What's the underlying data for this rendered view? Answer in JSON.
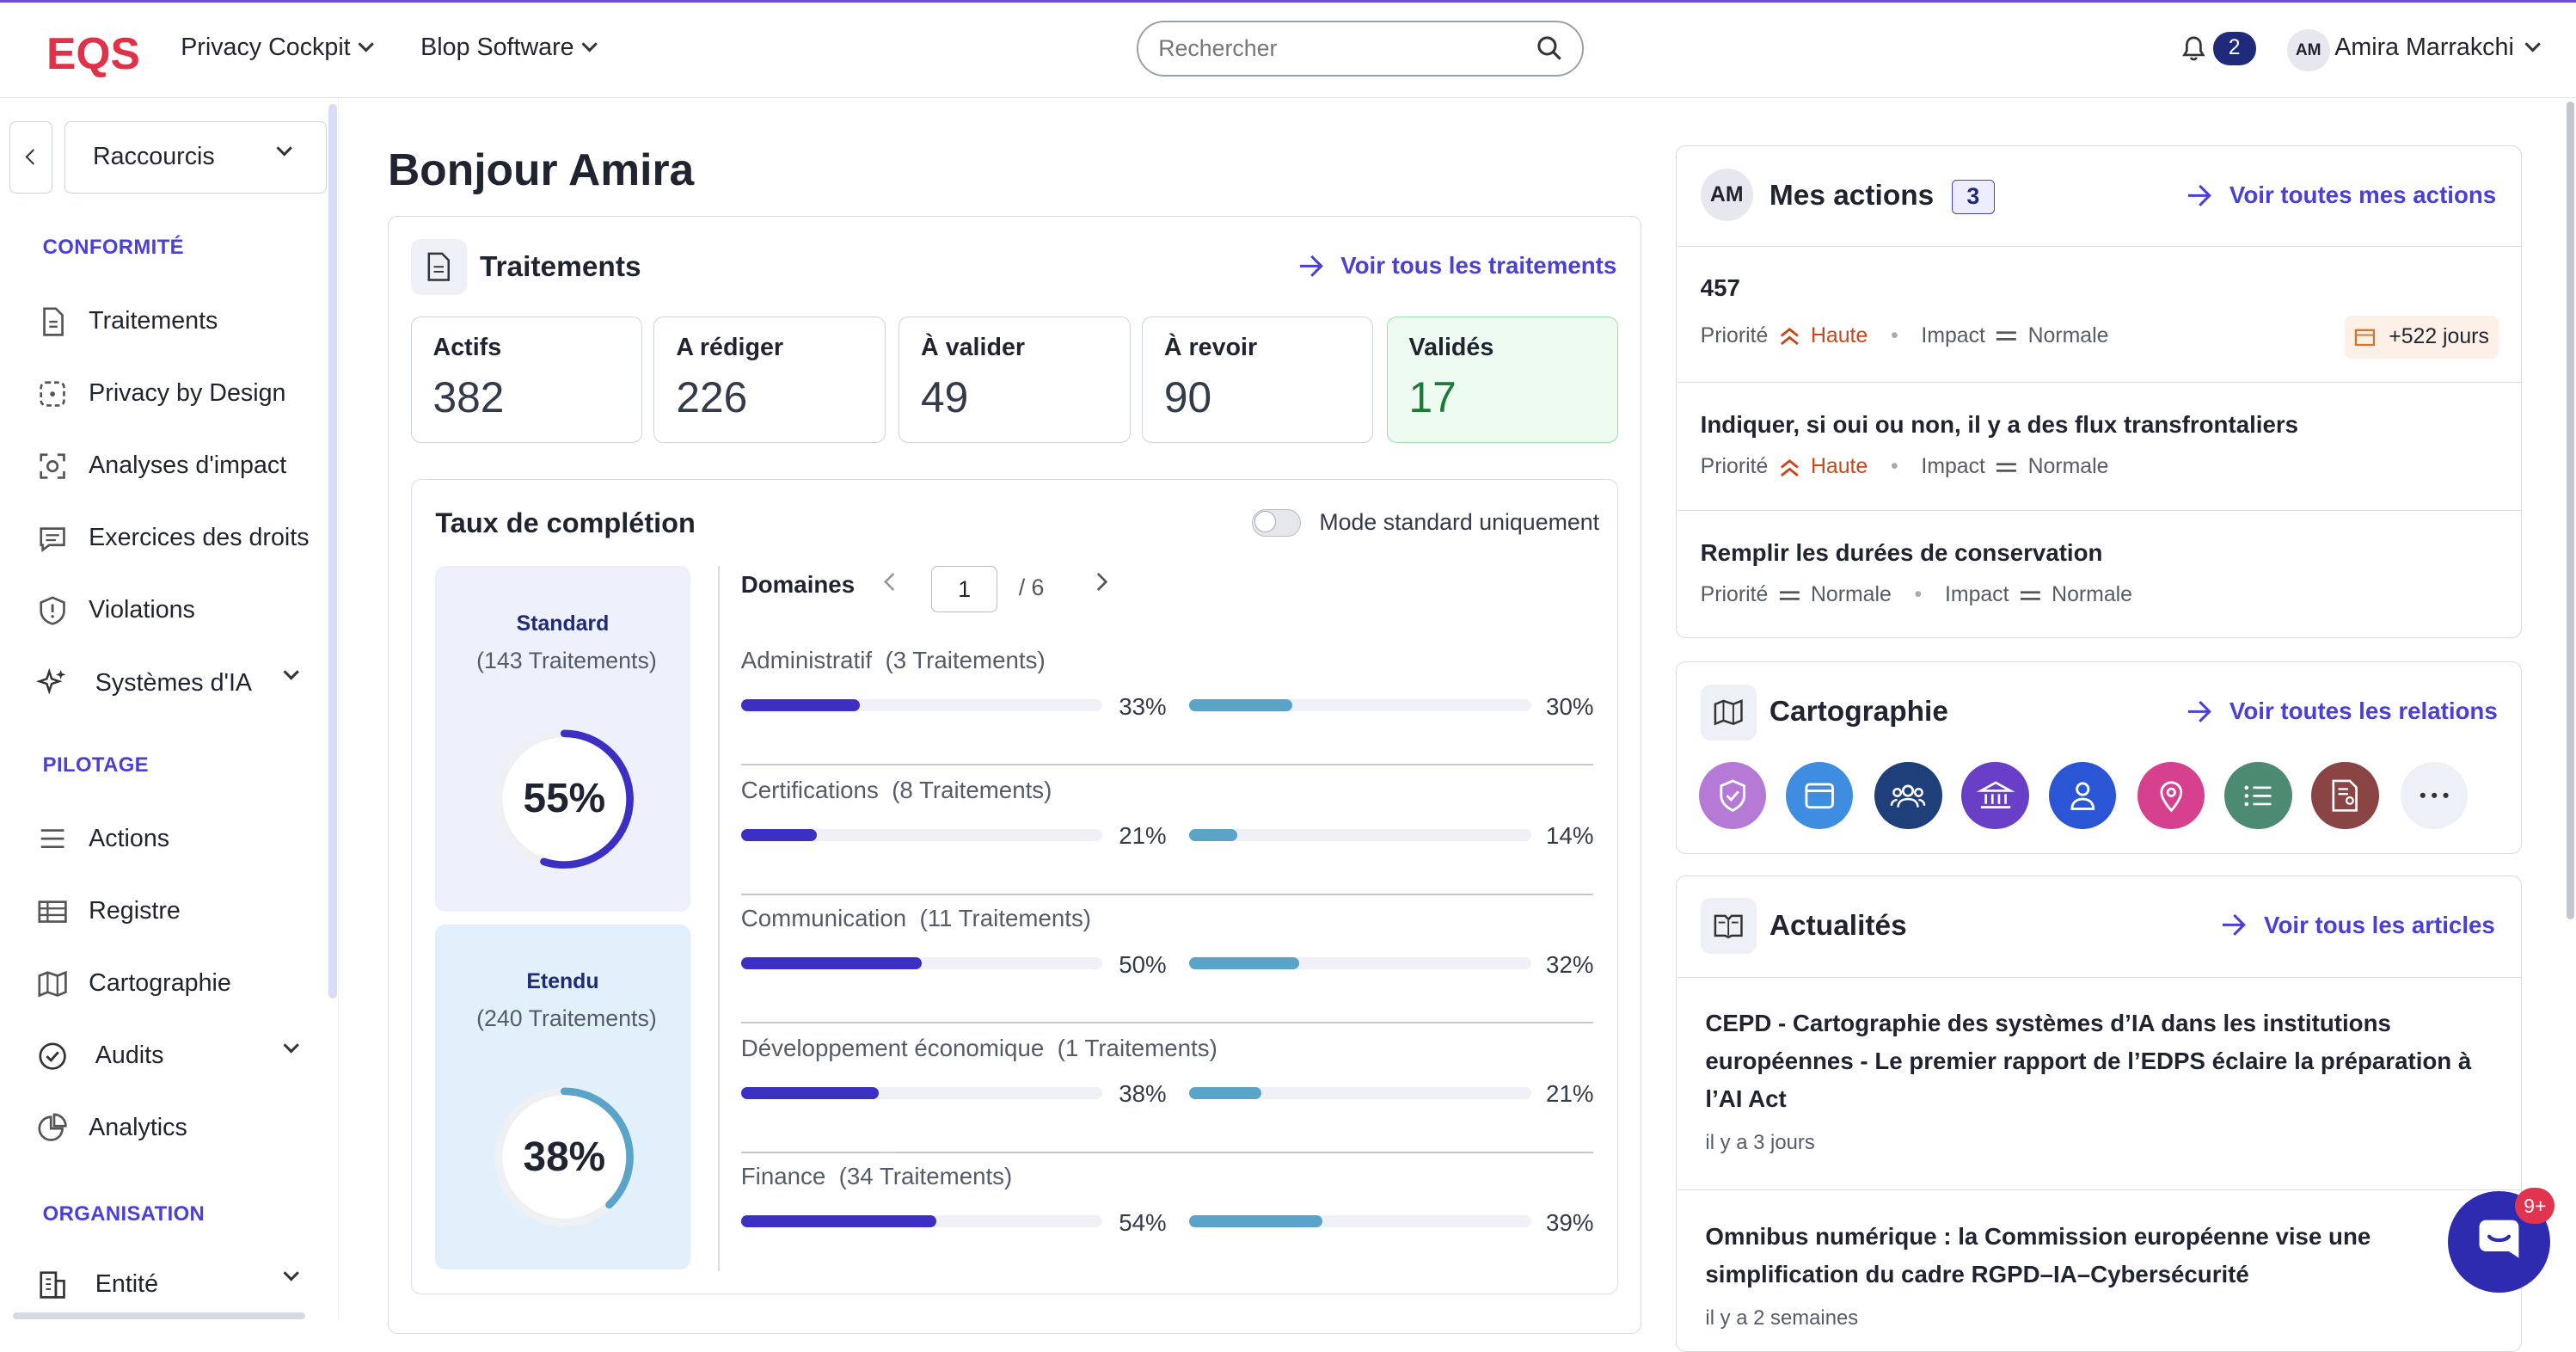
{
  "header": {
    "logo_text": "EQS",
    "nav": [
      "Privacy Cockpit",
      "Blop Software"
    ],
    "search_placeholder": "Rechercher",
    "notifications": "2",
    "user_initials": "AM",
    "user_name": "Amira Marrakchi"
  },
  "sidebar": {
    "shortcut_label": "Raccourcis",
    "sections": [
      {
        "label": "CONFORMITÉ",
        "items": [
          "Traitements",
          "Privacy by Design",
          "Analyses d'impact",
          "Exercices des droits",
          "Violations",
          "Systèmes d'IA"
        ]
      },
      {
        "label": "PILOTAGE",
        "items": [
          "Actions",
          "Registre",
          "Cartographie",
          "Audits",
          "Analytics"
        ]
      },
      {
        "label": "ORGANISATION",
        "items": [
          "Entité"
        ]
      }
    ]
  },
  "main": {
    "greeting": "Bonjour Amira",
    "traitements": {
      "title": "Traitements",
      "link": "Voir tous les traitements",
      "stats": [
        {
          "label": "Actifs",
          "value": "382"
        },
        {
          "label": "A rédiger",
          "value": "226"
        },
        {
          "label": "À valider",
          "value": "49"
        },
        {
          "label": "À revoir",
          "value": "90"
        },
        {
          "label": "Validés",
          "value": "17"
        }
      ]
    },
    "completion": {
      "title": "Taux de complétion",
      "toggle_label": "Mode standard uniquement",
      "standard": {
        "title": "Standard",
        "sub": "(143 Traitements)",
        "pct": "55%",
        "value": 0.55
      },
      "etendu": {
        "title": "Etendu",
        "sub": "(240 Traitements)",
        "pct": "38%",
        "value": 0.38
      },
      "domains_title": "Domaines",
      "page": "1",
      "pages": "/ 6",
      "domains": [
        {
          "name": "Administratif",
          "count": "(3 Traitements)",
          "std": "33%",
          "ext": "30%",
          "std_v": 0.33,
          "ext_v": 0.3
        },
        {
          "name": "Certifications",
          "count": "(8 Traitements)",
          "std": "21%",
          "ext": "14%",
          "std_v": 0.21,
          "ext_v": 0.14
        },
        {
          "name": "Communication",
          "count": "(11 Traitements)",
          "std": "50%",
          "ext": "32%",
          "std_v": 0.5,
          "ext_v": 0.32
        },
        {
          "name": "Développement économique",
          "count": "(1 Traitements)",
          "std": "38%",
          "ext": "21%",
          "std_v": 0.38,
          "ext_v": 0.21
        },
        {
          "name": "Finance",
          "count": "(34 Traitements)",
          "std": "54%",
          "ext": "39%",
          "std_v": 0.54,
          "ext_v": 0.39
        }
      ]
    }
  },
  "actions": {
    "initials": "AM",
    "title": "Mes actions",
    "count": "3",
    "link": "Voir toutes mes actions",
    "priority_label": "Priorité",
    "impact_label": "Impact",
    "items": [
      {
        "title": "457",
        "priority": "Haute",
        "impact": "Normale",
        "due": "+522 jours"
      },
      {
        "title": "Indiquer, si oui ou non, il y a des flux transfrontaliers",
        "priority": "Haute",
        "impact": "Normale"
      },
      {
        "title": "Remplir les durées de conservation",
        "priority": "Normale",
        "impact": "Normale"
      }
    ]
  },
  "cartographie": {
    "title": "Cartographie",
    "link": "Voir toutes les relations",
    "icons": [
      {
        "name": "shield-check-icon",
        "color": "#b57ad6"
      },
      {
        "name": "window-icon",
        "color": "#3f8de0"
      },
      {
        "name": "group-icon",
        "color": "#1f3f7a"
      },
      {
        "name": "bank-icon",
        "color": "#6a3fc8"
      },
      {
        "name": "user-icon",
        "color": "#2a56d6"
      },
      {
        "name": "location-pin-icon",
        "color": "#d6408e"
      },
      {
        "name": "list-icon",
        "color": "#4d8a72"
      },
      {
        "name": "document-user-icon",
        "color": "#8a4444"
      },
      {
        "name": "more-icon",
        "color": "#eef0f7"
      }
    ]
  },
  "actualites": {
    "title": "Actualités",
    "link": "Voir tous les articles",
    "items": [
      {
        "title": "CEPD - Cartographie des systèmes d’IA dans les institutions européennes - Le premier rapport de l’EDPS éclaire la préparation à l’AI Act",
        "date": "il y a 3 jours"
      },
      {
        "title": "Omnibus numérique : la Commission européenne vise une simplification du cadre RGPD–IA–Cybersécurité",
        "date": "il y a 2 semaines"
      }
    ]
  },
  "chat_badge": "9+",
  "colors": {
    "accent": "#4a3fd6",
    "std_bar": "#3b2fc4",
    "ext_bar": "#5aa3c9",
    "validated_bg": "#edfbf0"
  }
}
